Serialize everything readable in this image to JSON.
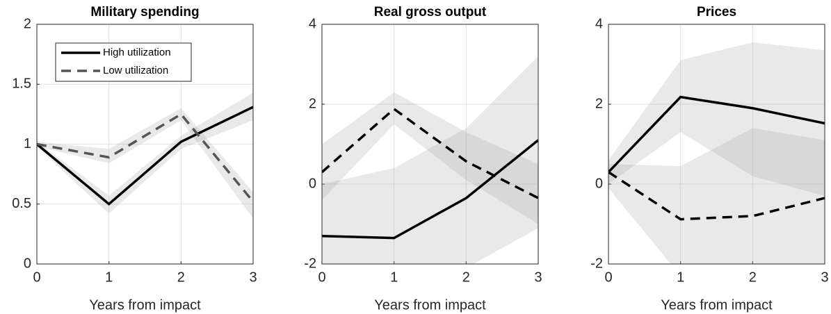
{
  "chart_data": [
    {
      "type": "line",
      "title": "Military spending",
      "xlabel": "Years from impact",
      "x": [
        0,
        1,
        2,
        3
      ],
      "xlim": [
        0,
        3
      ],
      "xticks": [
        0,
        1,
        2,
        3
      ],
      "ylim": [
        0,
        2
      ],
      "yticks": [
        0,
        0.5,
        1,
        1.5,
        2
      ],
      "grid": true,
      "legend": "upper left",
      "series": [
        {
          "name": "High utilization",
          "color": "#000000",
          "dash": false,
          "values": [
            1,
            0.5,
            1.02,
            1.31
          ],
          "lower": [
            0.98,
            0.42,
            0.96,
            1.2
          ],
          "upper": [
            1.02,
            0.57,
            1.07,
            1.43
          ]
        },
        {
          "name": "Low utilization",
          "color": "#555555",
          "dash": true,
          "values": [
            1,
            0.89,
            1.25,
            0.52
          ],
          "lower": [
            0.98,
            0.84,
            1.2,
            0.38
          ],
          "upper": [
            1.02,
            0.96,
            1.3,
            0.6
          ]
        }
      ]
    },
    {
      "type": "line",
      "title": "Real gross output",
      "xlabel": "Years from impact",
      "x": [
        0,
        1,
        2,
        3
      ],
      "xlim": [
        0,
        3
      ],
      "xticks": [
        0,
        1,
        2,
        3
      ],
      "ylim": [
        -2,
        4
      ],
      "yticks": [
        -2,
        0,
        2,
        4
      ],
      "grid": true,
      "series": [
        {
          "color": "#000000",
          "dash": false,
          "values": [
            -1.3,
            -1.35,
            -0.35,
            1.1
          ],
          "lower": [
            -2.5,
            -2.6,
            -2.1,
            -1.1
          ],
          "upper": [
            0,
            0.4,
            1.4,
            3.2
          ]
        },
        {
          "color": "#000000",
          "dash": true,
          "values": [
            0.3,
            1.88,
            0.57,
            -0.35
          ],
          "lower": [
            -0.4,
            1.5,
            0.1,
            -1
          ],
          "upper": [
            1,
            2.3,
            1.3,
            0.5
          ]
        }
      ]
    },
    {
      "type": "line",
      "title": "Prices",
      "xlabel": "Years from impact",
      "x": [
        0,
        1,
        2,
        3
      ],
      "xlim": [
        0,
        3
      ],
      "xticks": [
        0,
        1,
        2,
        3
      ],
      "ylim": [
        -2,
        4
      ],
      "yticks": [
        -2,
        0,
        2,
        4
      ],
      "grid": true,
      "series": [
        {
          "color": "#000000",
          "dash": false,
          "values": [
            0.3,
            2.18,
            1.9,
            1.52
          ],
          "lower": [
            0,
            1.3,
            0.2,
            -0.3
          ],
          "upper": [
            0.6,
            3.1,
            3.55,
            3.35
          ]
        },
        {
          "color": "#000000",
          "dash": true,
          "values": [
            0.3,
            -0.88,
            -0.8,
            -0.35
          ],
          "lower": [
            -0.1,
            -2.3,
            -2.4,
            -2.1
          ],
          "upper": [
            0.5,
            0.45,
            1.4,
            1.1
          ]
        }
      ]
    }
  ]
}
